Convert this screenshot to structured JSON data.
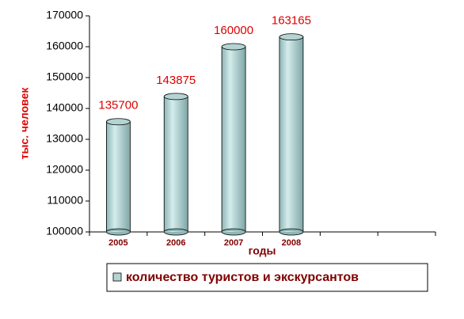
{
  "chart_data": {
    "type": "bar",
    "y_axis_label": "тыс. человек",
    "x_axis_label": "годы",
    "categories": [
      "2005",
      "2006",
      "2007",
      "2008",
      null,
      null
    ],
    "series": [
      {
        "name": "количество туристов и экскурсантов",
        "color": "#b4d4d4",
        "values": [
          135700,
          143875,
          160000,
          163165,
          null,
          null
        ]
      }
    ],
    "ylim": [
      100000,
      170000
    ],
    "yticks": [
      100000,
      110000,
      120000,
      130000,
      140000,
      150000,
      160000,
      170000
    ],
    "legend": "bottom"
  }
}
